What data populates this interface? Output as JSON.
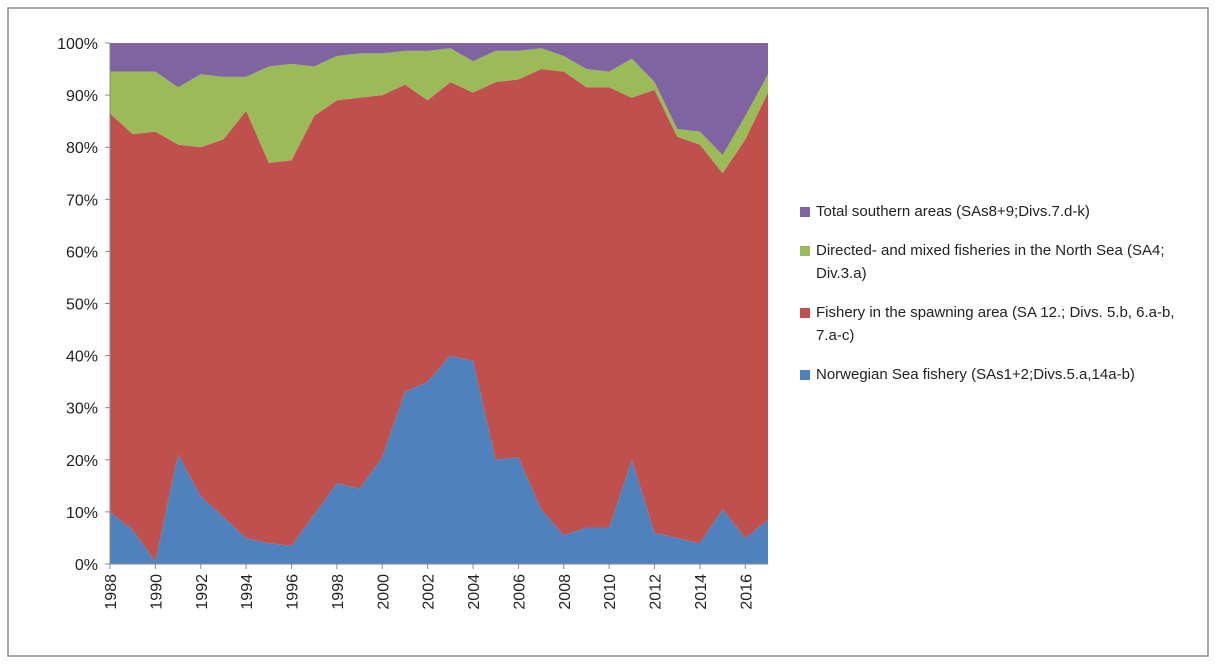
{
  "chart_data": {
    "type": "stacked-area",
    "x": [
      1988,
      1989,
      1990,
      1991,
      1992,
      1993,
      1994,
      1995,
      1996,
      1997,
      1998,
      1999,
      2000,
      2001,
      2002,
      2003,
      2004,
      2005,
      2006,
      2007,
      2008,
      2009,
      2010,
      2011,
      2012,
      2013,
      2014,
      2015,
      2016,
      2017
    ],
    "xlim": [
      1988,
      2017
    ],
    "xticks": [
      1988,
      1990,
      1992,
      1994,
      1996,
      1998,
      2000,
      2002,
      2004,
      2006,
      2008,
      2010,
      2012,
      2014,
      2016
    ],
    "ylim": [
      0,
      100
    ],
    "yticks": [
      {
        "value": 0,
        "label": "0%"
      },
      {
        "value": 10,
        "label": "10%"
      },
      {
        "value": 20,
        "label": "20%"
      },
      {
        "value": 30,
        "label": "30%"
      },
      {
        "value": 40,
        "label": "40%"
      },
      {
        "value": 50,
        "label": "50%"
      },
      {
        "value": 60,
        "label": "60%"
      },
      {
        "value": 70,
        "label": "70%"
      },
      {
        "value": 80,
        "label": "80%"
      },
      {
        "value": 90,
        "label": "90%"
      },
      {
        "value": 100,
        "label": "100%"
      }
    ],
    "legend": "right",
    "series": [
      {
        "name": "Norwegian Sea fishery (SAs1+2;Divs.5.a,14a-b)",
        "color": "#4f81bd",
        "values": [
          10,
          6.5,
          0.5,
          21,
          13,
          9,
          5,
          4,
          3.5,
          9.5,
          15.5,
          14.5,
          20.5,
          33,
          35,
          40,
          39,
          20,
          20.5,
          10.5,
          5.5,
          7,
          7,
          20,
          6,
          5,
          4,
          10.5,
          5,
          8.5
        ]
      },
      {
        "name": "Fishery in the spawning area (SA 12.; Divs. 5.b, 6.a-b, 7.a-c)",
        "color": "#c0504d",
        "values": [
          76.5,
          76,
          82.5,
          59.5,
          67,
          72.5,
          82,
          73,
          74,
          76.5,
          73.5,
          75,
          69.5,
          59,
          54,
          52.5,
          51.5,
          72.5,
          72.5,
          84.5,
          89,
          84.5,
          84.5,
          69.5,
          85,
          77,
          76.5,
          64.5,
          76.5,
          82
        ]
      },
      {
        "name": "Directed- and mixed fisheries in the North Sea (SA4; Div.3.a)",
        "color": "#9bbb59",
        "values": [
          8,
          12,
          11.5,
          11,
          14,
          12,
          6.5,
          18.5,
          18.5,
          9.5,
          8.5,
          8.5,
          8,
          6.5,
          9.5,
          6.5,
          6,
          6,
          5.5,
          4,
          3,
          3.5,
          3,
          7.5,
          1.5,
          1.5,
          2.5,
          3.5,
          4.5,
          3.5
        ]
      },
      {
        "name": "Total southern areas (SAs8+9;Divs.7.d-k)",
        "color": "#8064a2",
        "values": [
          5.5,
          5.5,
          5.5,
          8.5,
          6,
          6.5,
          6.5,
          4.5,
          4,
          4.5,
          2.5,
          2,
          2,
          1.5,
          1.5,
          1,
          3.5,
          1.5,
          1.5,
          1,
          2.5,
          5,
          5.5,
          3,
          7.5,
          16.5,
          17,
          21.5,
          14,
          6
        ]
      }
    ]
  }
}
